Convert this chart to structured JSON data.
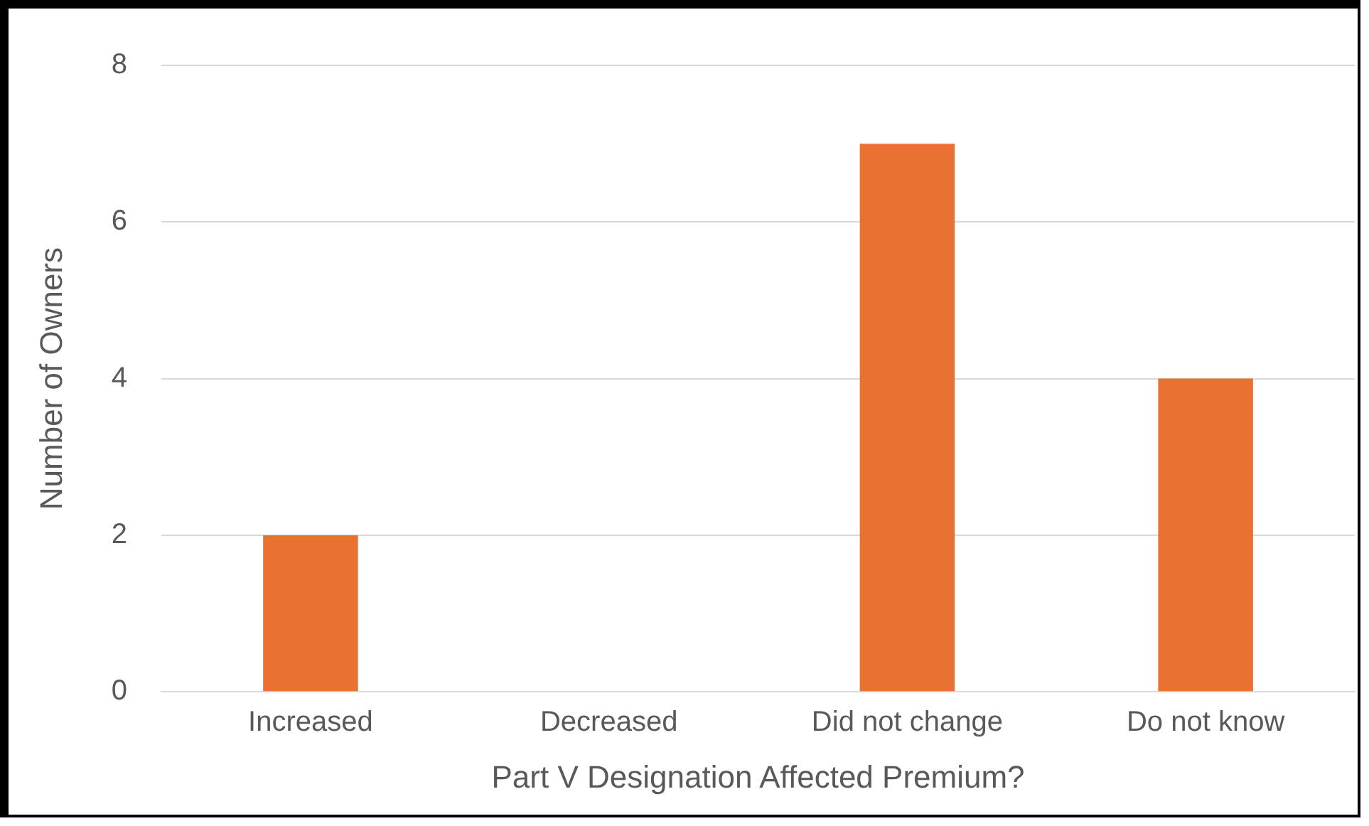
{
  "chart_data": {
    "type": "bar",
    "xlabel": "Part V Designation Affected Premium?",
    "ylabel": "Number of Owners",
    "categories": [
      "Increased",
      "Decreased",
      "Did not change",
      "Do not know"
    ],
    "values": [
      2,
      0,
      7,
      4
    ],
    "color": "#e97132",
    "ylim": [
      0,
      8
    ],
    "yticks": [
      0,
      2,
      4,
      6,
      8
    ],
    "grid": "y"
  }
}
